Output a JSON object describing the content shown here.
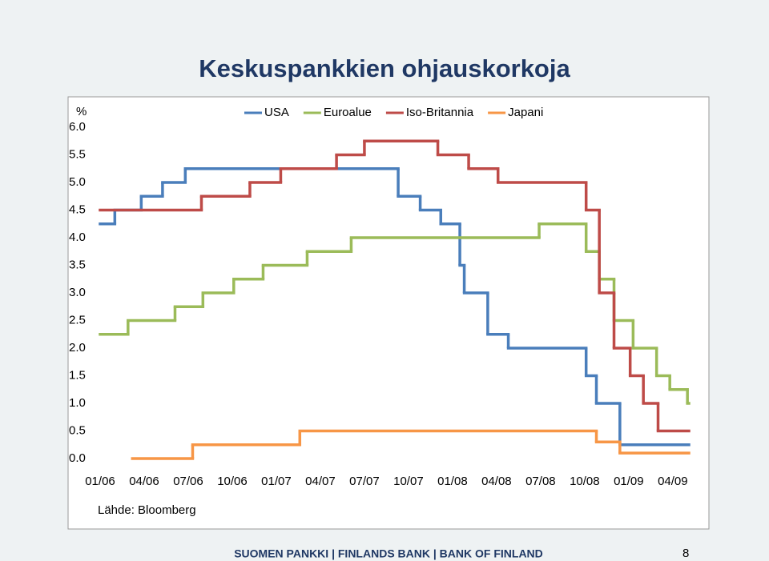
{
  "title": "Keskuspankkien ohjauskorkoja",
  "footer": "SUOMEN PANKKI | FINLANDS BANK | BANK OF FINLAND",
  "page_number": "8",
  "chart_data": {
    "type": "line",
    "step": "post",
    "y_unit": "%",
    "source": "Lähde: Bloomberg",
    "grid": false,
    "legend": "top",
    "xlim": [
      0,
      40.1
    ],
    "xticks": [
      {
        "value": 0,
        "label": "01/06"
      },
      {
        "value": 3,
        "label": "04/06"
      },
      {
        "value": 6,
        "label": "07/06"
      },
      {
        "value": 9,
        "label": "10/06"
      },
      {
        "value": 12,
        "label": "01/07"
      },
      {
        "value": 15,
        "label": "04/07"
      },
      {
        "value": 18,
        "label": "07/07"
      },
      {
        "value": 21,
        "label": "10/07"
      },
      {
        "value": 24,
        "label": "01/08"
      },
      {
        "value": 27,
        "label": "04/08"
      },
      {
        "value": 30,
        "label": "07/08"
      },
      {
        "value": 33,
        "label": "10/08"
      },
      {
        "value": 36,
        "label": "01/09"
      },
      {
        "value": 39,
        "label": "04/09"
      }
    ],
    "ylim": [
      0,
      6
    ],
    "yticks": [
      {
        "value": 0,
        "label": "0.0"
      },
      {
        "value": 0.5,
        "label": "0.5"
      },
      {
        "value": 1,
        "label": "1.0"
      },
      {
        "value": 1.5,
        "label": "1.5"
      },
      {
        "value": 2,
        "label": "2.0"
      },
      {
        "value": 2.5,
        "label": "2.5"
      },
      {
        "value": 3,
        "label": "3.0"
      },
      {
        "value": 3.5,
        "label": "3.5"
      },
      {
        "value": 4,
        "label": "4.0"
      },
      {
        "value": 4.5,
        "label": "4.5"
      },
      {
        "value": 5,
        "label": "5.0"
      },
      {
        "value": 5.5,
        "label": "5.5"
      },
      {
        "value": 6,
        "label": "6.0"
      }
    ],
    "series": [
      {
        "name": "USA",
        "color": "#4a7ebb",
        "x": [
          0,
          1,
          2.8,
          4.25,
          5.8,
          20.3,
          21.8,
          23.2,
          24.5,
          24.8,
          26.4,
          27.8,
          33.1,
          33.8,
          35.4,
          40.1
        ],
        "values": [
          4.25,
          4.5,
          4.75,
          5,
          5.25,
          4.75,
          4.5,
          4.25,
          3.5,
          3,
          2.25,
          2,
          1.5,
          1,
          0.25,
          0.25
        ]
      },
      {
        "name": "Euroalue",
        "color": "#9bbb59",
        "x": [
          0,
          1.9,
          5.1,
          7.0,
          9.1,
          11.1,
          14.1,
          17.1,
          29.9,
          33.1,
          34.0,
          35.0,
          36.3,
          37.9,
          38.8,
          40.0,
          40.1
        ],
        "values": [
          2.25,
          2.5,
          2.75,
          3,
          3.25,
          3.5,
          3.75,
          4,
          4.25,
          3.75,
          3.25,
          2.5,
          2,
          1.5,
          1.25,
          1,
          1
        ]
      },
      {
        "name": "Iso-Britannia",
        "color": "#be4b48",
        "x": [
          0,
          6.9,
          10.2,
          12.3,
          16.1,
          18.0,
          23.0,
          25.1,
          27.1,
          33.1,
          34.0,
          35.0,
          36.1,
          37.0,
          38.0,
          40.1
        ],
        "values": [
          4.5,
          4.75,
          5,
          5.25,
          5.5,
          5.75,
          5.5,
          5.25,
          5,
          4.5,
          3,
          2,
          1.5,
          1,
          0.5,
          0.5
        ]
      },
      {
        "name": "Japani",
        "color": "#f79646",
        "x": [
          2.2,
          6.3,
          13.6,
          33.8,
          35.4,
          40.1
        ],
        "values": [
          0,
          0.25,
          0.5,
          0.3,
          0.1,
          0.1
        ]
      }
    ]
  }
}
